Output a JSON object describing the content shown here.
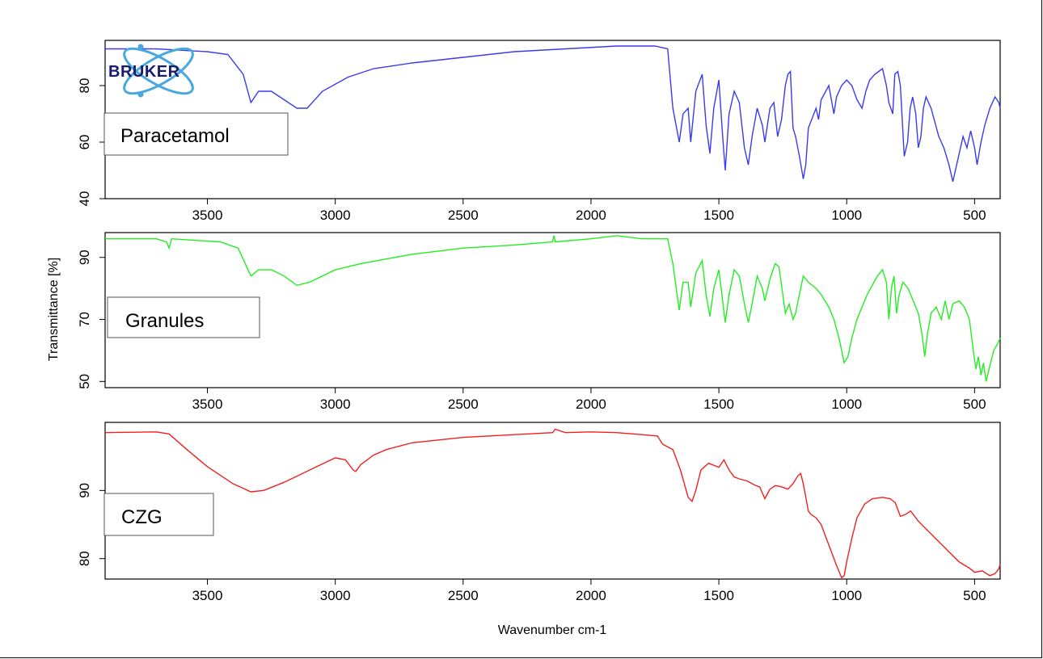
{
  "chart_data": {
    "type": "line",
    "x_axis_title": "Wavenumber cm-1",
    "y_axis_title": "Transmittance [%]",
    "x_range": [
      3900,
      400
    ],
    "x_ticks": [
      3500,
      3000,
      2500,
      2000,
      1500,
      1000,
      500
    ],
    "logo_text": "BRUKER",
    "panels": [
      {
        "name": "Paracetamol",
        "color": "#3a3af0",
        "ylim": [
          40,
          96
        ],
        "y_ticks": [
          40,
          60,
          80
        ],
        "points": [
          [
            3900,
            93
          ],
          [
            3700,
            93
          ],
          [
            3500,
            92
          ],
          [
            3420,
            91
          ],
          [
            3360,
            84
          ],
          [
            3330,
            74
          ],
          [
            3300,
            78
          ],
          [
            3250,
            78
          ],
          [
            3200,
            75
          ],
          [
            3150,
            72
          ],
          [
            3110,
            72
          ],
          [
            3050,
            78
          ],
          [
            2950,
            83
          ],
          [
            2850,
            86
          ],
          [
            2700,
            88
          ],
          [
            2500,
            90
          ],
          [
            2300,
            92
          ],
          [
            2100,
            93
          ],
          [
            1900,
            94
          ],
          [
            1750,
            94
          ],
          [
            1700,
            93
          ],
          [
            1680,
            72
          ],
          [
            1655,
            60
          ],
          [
            1640,
            70
          ],
          [
            1620,
            72
          ],
          [
            1610,
            60
          ],
          [
            1590,
            78
          ],
          [
            1565,
            84
          ],
          [
            1550,
            66
          ],
          [
            1535,
            56
          ],
          [
            1520,
            72
          ],
          [
            1500,
            82
          ],
          [
            1485,
            62
          ],
          [
            1475,
            50
          ],
          [
            1460,
            70
          ],
          [
            1440,
            78
          ],
          [
            1420,
            74
          ],
          [
            1400,
            58
          ],
          [
            1385,
            52
          ],
          [
            1370,
            62
          ],
          [
            1350,
            72
          ],
          [
            1330,
            66
          ],
          [
            1320,
            60
          ],
          [
            1300,
            72
          ],
          [
            1285,
            74
          ],
          [
            1270,
            62
          ],
          [
            1255,
            68
          ],
          [
            1240,
            80
          ],
          [
            1230,
            84
          ],
          [
            1220,
            85
          ],
          [
            1210,
            65
          ],
          [
            1200,
            62
          ],
          [
            1185,
            55
          ],
          [
            1170,
            47
          ],
          [
            1160,
            52
          ],
          [
            1150,
            65
          ],
          [
            1120,
            72
          ],
          [
            1110,
            68
          ],
          [
            1100,
            75
          ],
          [
            1070,
            80
          ],
          [
            1050,
            70
          ],
          [
            1040,
            76
          ],
          [
            1020,
            80
          ],
          [
            1000,
            82
          ],
          [
            980,
            80
          ],
          [
            960,
            75
          ],
          [
            940,
            72
          ],
          [
            925,
            78
          ],
          [
            910,
            82
          ],
          [
            890,
            84
          ],
          [
            860,
            86
          ],
          [
            845,
            80
          ],
          [
            835,
            74
          ],
          [
            820,
            70
          ],
          [
            812,
            84
          ],
          [
            800,
            85
          ],
          [
            790,
            80
          ],
          [
            775,
            55
          ],
          [
            762,
            60
          ],
          [
            752,
            72
          ],
          [
            742,
            76
          ],
          [
            730,
            70
          ],
          [
            720,
            58
          ],
          [
            710,
            62
          ],
          [
            700,
            72
          ],
          [
            690,
            76
          ],
          [
            670,
            72
          ],
          [
            640,
            62
          ],
          [
            620,
            58
          ],
          [
            600,
            52
          ],
          [
            585,
            46
          ],
          [
            570,
            52
          ],
          [
            560,
            56
          ],
          [
            545,
            62
          ],
          [
            530,
            58
          ],
          [
            515,
            64
          ],
          [
            500,
            58
          ],
          [
            490,
            52
          ],
          [
            475,
            60
          ],
          [
            460,
            66
          ],
          [
            440,
            72
          ],
          [
            420,
            76
          ],
          [
            405,
            74
          ],
          [
            400,
            72
          ]
        ]
      },
      {
        "name": "Granules",
        "color": "#22ee22",
        "ylim": [
          48,
          98
        ],
        "y_ticks": [
          50,
          70,
          90
        ],
        "points": [
          [
            3900,
            96
          ],
          [
            3700,
            96
          ],
          [
            3660,
            95
          ],
          [
            3650,
            93
          ],
          [
            3640,
            96
          ],
          [
            3450,
            95
          ],
          [
            3380,
            93
          ],
          [
            3330,
            84
          ],
          [
            3300,
            86
          ],
          [
            3250,
            86
          ],
          [
            3200,
            84
          ],
          [
            3150,
            81
          ],
          [
            3100,
            82
          ],
          [
            3000,
            86
          ],
          [
            2900,
            88
          ],
          [
            2700,
            91
          ],
          [
            2500,
            93
          ],
          [
            2300,
            94
          ],
          [
            2150,
            95
          ],
          [
            2145,
            97
          ],
          [
            2140,
            95
          ],
          [
            2000,
            96
          ],
          [
            1900,
            97
          ],
          [
            1800,
            96
          ],
          [
            1700,
            96
          ],
          [
            1680,
            88
          ],
          [
            1655,
            73
          ],
          [
            1640,
            82
          ],
          [
            1620,
            82
          ],
          [
            1610,
            74
          ],
          [
            1590,
            85
          ],
          [
            1565,
            89
          ],
          [
            1550,
            78
          ],
          [
            1535,
            71
          ],
          [
            1520,
            80
          ],
          [
            1500,
            86
          ],
          [
            1485,
            76
          ],
          [
            1475,
            69
          ],
          [
            1460,
            78
          ],
          [
            1440,
            86
          ],
          [
            1420,
            84
          ],
          [
            1400,
            75
          ],
          [
            1385,
            69
          ],
          [
            1370,
            75
          ],
          [
            1350,
            84
          ],
          [
            1330,
            80
          ],
          [
            1320,
            76
          ],
          [
            1300,
            83
          ],
          [
            1280,
            88
          ],
          [
            1265,
            87
          ],
          [
            1250,
            78
          ],
          [
            1240,
            72
          ],
          [
            1225,
            75
          ],
          [
            1210,
            70
          ],
          [
            1200,
            72
          ],
          [
            1185,
            78
          ],
          [
            1170,
            84
          ],
          [
            1150,
            82
          ],
          [
            1120,
            80
          ],
          [
            1100,
            78
          ],
          [
            1070,
            74
          ],
          [
            1050,
            70
          ],
          [
            1030,
            64
          ],
          [
            1010,
            56
          ],
          [
            995,
            58
          ],
          [
            980,
            64
          ],
          [
            960,
            70
          ],
          [
            920,
            78
          ],
          [
            880,
            84
          ],
          [
            860,
            86
          ],
          [
            845,
            82
          ],
          [
            835,
            70
          ],
          [
            825,
            80
          ],
          [
            815,
            84
          ],
          [
            805,
            72
          ],
          [
            795,
            78
          ],
          [
            780,
            82
          ],
          [
            760,
            80
          ],
          [
            740,
            76
          ],
          [
            720,
            72
          ],
          [
            705,
            65
          ],
          [
            695,
            58
          ],
          [
            685,
            65
          ],
          [
            670,
            72
          ],
          [
            650,
            74
          ],
          [
            630,
            70
          ],
          [
            615,
            76
          ],
          [
            600,
            70
          ],
          [
            585,
            75
          ],
          [
            560,
            76
          ],
          [
            540,
            74
          ],
          [
            520,
            70
          ],
          [
            505,
            60
          ],
          [
            495,
            54
          ],
          [
            485,
            58
          ],
          [
            475,
            52
          ],
          [
            465,
            56
          ],
          [
            455,
            50
          ],
          [
            440,
            55
          ],
          [
            425,
            60
          ],
          [
            410,
            62
          ],
          [
            400,
            64
          ]
        ]
      },
      {
        "name": "CZG",
        "color": "#f02020",
        "ylim": [
          77,
          100
        ],
        "y_ticks": [
          80,
          90
        ],
        "points": [
          [
            3900,
            98.5
          ],
          [
            3700,
            98.6
          ],
          [
            3650,
            98.3
          ],
          [
            3580,
            96
          ],
          [
            3500,
            93.5
          ],
          [
            3400,
            91
          ],
          [
            3330,
            89.8
          ],
          [
            3280,
            90
          ],
          [
            3200,
            91.2
          ],
          [
            3100,
            93
          ],
          [
            3000,
            94.8
          ],
          [
            2960,
            94.5
          ],
          [
            2930,
            93
          ],
          [
            2920,
            92.8
          ],
          [
            2900,
            93.8
          ],
          [
            2850,
            95.2
          ],
          [
            2800,
            96
          ],
          [
            2700,
            97
          ],
          [
            2500,
            97.8
          ],
          [
            2300,
            98.2
          ],
          [
            2150,
            98.5
          ],
          [
            2140,
            99
          ],
          [
            2100,
            98.5
          ],
          [
            2000,
            98.6
          ],
          [
            1900,
            98.5
          ],
          [
            1800,
            98.2
          ],
          [
            1740,
            98
          ],
          [
            1720,
            96.8
          ],
          [
            1680,
            96
          ],
          [
            1650,
            93
          ],
          [
            1620,
            89
          ],
          [
            1605,
            88.4
          ],
          [
            1590,
            90
          ],
          [
            1570,
            93
          ],
          [
            1540,
            94
          ],
          [
            1500,
            93.4
          ],
          [
            1480,
            94.5
          ],
          [
            1460,
            93
          ],
          [
            1440,
            92
          ],
          [
            1420,
            91.7
          ],
          [
            1390,
            91.4
          ],
          [
            1360,
            90.8
          ],
          [
            1340,
            90.5
          ],
          [
            1320,
            88.8
          ],
          [
            1300,
            90.2
          ],
          [
            1280,
            90.7
          ],
          [
            1260,
            90.6
          ],
          [
            1230,
            90.2
          ],
          [
            1210,
            91
          ],
          [
            1190,
            92.2
          ],
          [
            1180,
            92.5
          ],
          [
            1170,
            91
          ],
          [
            1150,
            87
          ],
          [
            1140,
            86.5
          ],
          [
            1120,
            86
          ],
          [
            1100,
            85
          ],
          [
            1080,
            83
          ],
          [
            1060,
            81
          ],
          [
            1040,
            79
          ],
          [
            1020,
            77.2
          ],
          [
            1010,
            77.5
          ],
          [
            1000,
            79.5
          ],
          [
            980,
            83
          ],
          [
            960,
            86
          ],
          [
            930,
            88
          ],
          [
            900,
            88.8
          ],
          [
            860,
            89
          ],
          [
            830,
            88.8
          ],
          [
            810,
            88.2
          ],
          [
            790,
            86.2
          ],
          [
            770,
            86.5
          ],
          [
            750,
            87
          ],
          [
            720,
            85.5
          ],
          [
            680,
            84
          ],
          [
            640,
            82.5
          ],
          [
            600,
            81
          ],
          [
            560,
            79.5
          ],
          [
            520,
            78.6
          ],
          [
            500,
            78
          ],
          [
            470,
            78.2
          ],
          [
            440,
            77.5
          ],
          [
            420,
            77.8
          ],
          [
            405,
            78.5
          ],
          [
            400,
            79.2
          ]
        ]
      }
    ]
  }
}
